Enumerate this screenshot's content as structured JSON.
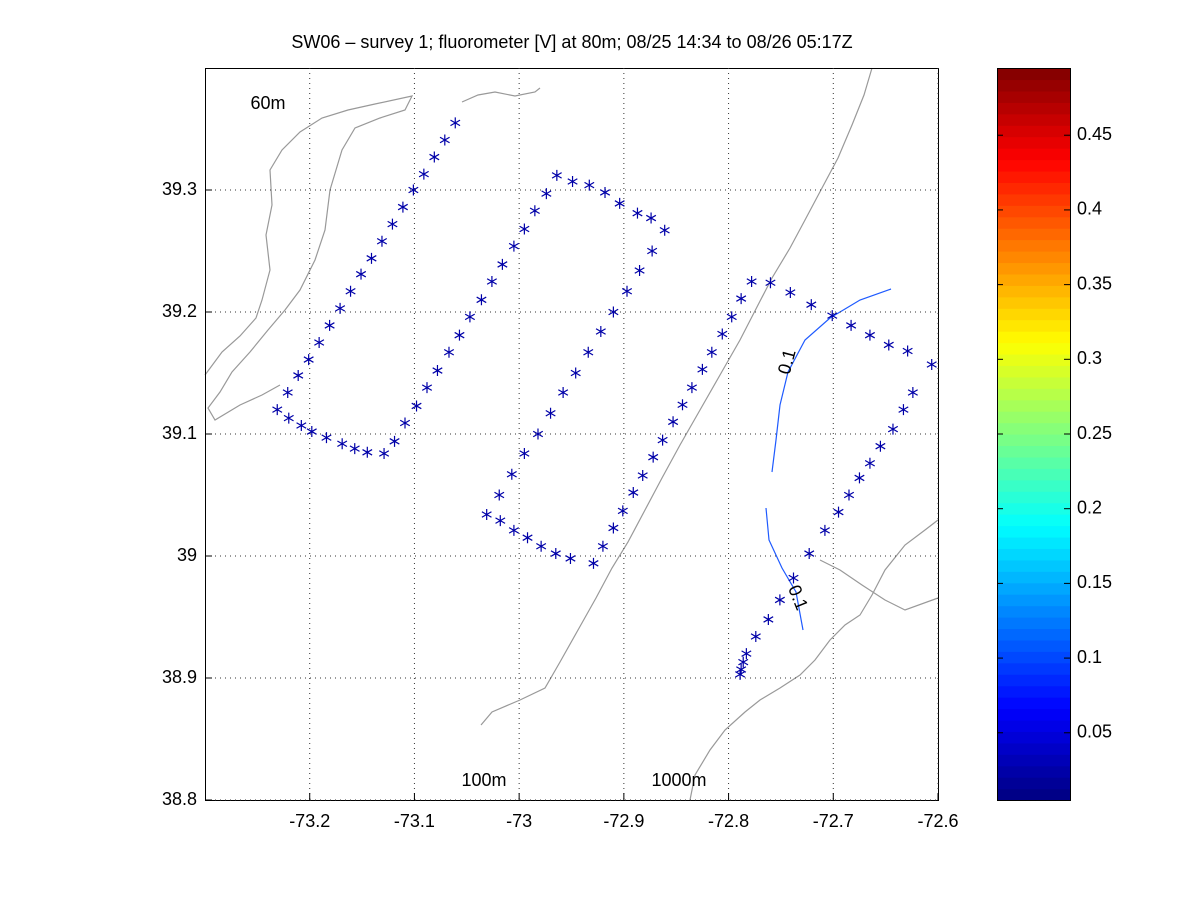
{
  "chart_data": {
    "type": "scatter",
    "title": "SW06 – survey 1; fluorometer [V] at 80m; 08/25 14:34 to 08/26 05:17Z",
    "annotations": [
      "60m",
      "100m",
      "1000m"
    ],
    "contour_labels": [
      "0.1",
      "0.1"
    ],
    "color": "#0000a8",
    "grid": true,
    "xlim": [
      -73.3,
      -72.6
    ],
    "ylim": [
      38.8,
      39.4
    ],
    "xticks": [
      -73.2,
      -73.1,
      -73,
      -72.9,
      -72.8,
      -72.7,
      -72.6
    ],
    "yticks": [
      38.8,
      38.9,
      39,
      39.1,
      39.2,
      39.3
    ],
    "colorbar": {
      "colormap": "jet",
      "clim": [
        0.005,
        0.495
      ],
      "ticks": [
        0.05,
        0.1,
        0.15,
        0.2,
        0.25,
        0.3,
        0.35,
        0.4,
        0.45
      ]
    },
    "x": [
      -73.231,
      -73.221,
      -73.211,
      -73.201,
      -73.191,
      -73.181,
      -73.171,
      -73.161,
      -73.151,
      -73.141,
      -73.131,
      -73.121,
      -73.111,
      -73.101,
      -73.091,
      -73.081,
      -73.071,
      -73.061,
      -73.22,
      -73.208,
      -73.198,
      -73.184,
      -73.169,
      -73.157,
      -73.145,
      -73.129,
      -73.119,
      -73.109,
      -73.098,
      -73.088,
      -73.078,
      -73.067,
      -73.057,
      -73.047,
      -73.036,
      -73.026,
      -73.016,
      -73.005,
      -72.995,
      -72.985,
      -72.974,
      -72.964,
      -72.949,
      -72.933,
      -72.918,
      -72.904,
      -72.887,
      -72.874,
      -72.861,
      -72.873,
      -72.885,
      -72.897,
      -72.91,
      -72.922,
      -72.934,
      -72.946,
      -72.958,
      -72.97,
      -72.982,
      -72.995,
      -73.007,
      -73.019,
      -73.031,
      -73.018,
      -73.005,
      -72.992,
      -72.979,
      -72.965,
      -72.951,
      -72.929,
      -72.92,
      -72.91,
      -72.901,
      -72.891,
      -72.882,
      -72.872,
      -72.863,
      -72.853,
      -72.844,
      -72.835,
      -72.825,
      -72.816,
      -72.806,
      -72.797,
      -72.788,
      -72.778,
      -72.76,
      -72.741,
      -72.721,
      -72.701,
      -72.683,
      -72.665,
      -72.647,
      -72.629,
      -72.606,
      -72.624,
      -72.633,
      -72.643,
      -72.655,
      -72.665,
      -72.675,
      -72.685,
      -72.695,
      -72.708,
      -72.723,
      -72.738,
      -72.751,
      -72.762,
      -72.774,
      -72.783,
      -72.786,
      -72.788,
      -72.789
    ],
    "y": [
      39.12,
      39.134,
      39.148,
      39.161,
      39.175,
      39.189,
      39.203,
      39.217,
      39.231,
      39.244,
      39.258,
      39.272,
      39.286,
      39.3,
      39.313,
      39.327,
      39.341,
      39.355,
      39.113,
      39.107,
      39.102,
      39.097,
      39.092,
      39.088,
      39.085,
      39.084,
      39.094,
      39.109,
      39.123,
      39.138,
      39.152,
      39.167,
      39.181,
      39.196,
      39.21,
      39.225,
      39.239,
      39.254,
      39.268,
      39.283,
      39.297,
      39.312,
      39.307,
      39.304,
      39.298,
      39.289,
      39.281,
      39.277,
      39.267,
      39.25,
      39.234,
      39.217,
      39.2,
      39.184,
      39.167,
      39.15,
      39.134,
      39.117,
      39.1,
      39.084,
      39.067,
      39.05,
      39.034,
      39.029,
      39.021,
      39.015,
      39.008,
      39.002,
      38.998,
      38.994,
      39.008,
      39.023,
      39.037,
      39.052,
      39.066,
      39.081,
      39.095,
      39.11,
      39.124,
      39.138,
      39.153,
      39.167,
      39.182,
      39.196,
      39.211,
      39.225,
      39.224,
      39.216,
      39.206,
      39.197,
      39.189,
      39.181,
      39.173,
      39.168,
      39.157,
      39.134,
      39.12,
      39.104,
      39.09,
      39.076,
      39.064,
      39.05,
      39.036,
      39.021,
      39.002,
      38.982,
      38.964,
      38.948,
      38.934,
      38.92,
      38.913,
      38.907,
      38.903
    ]
  }
}
